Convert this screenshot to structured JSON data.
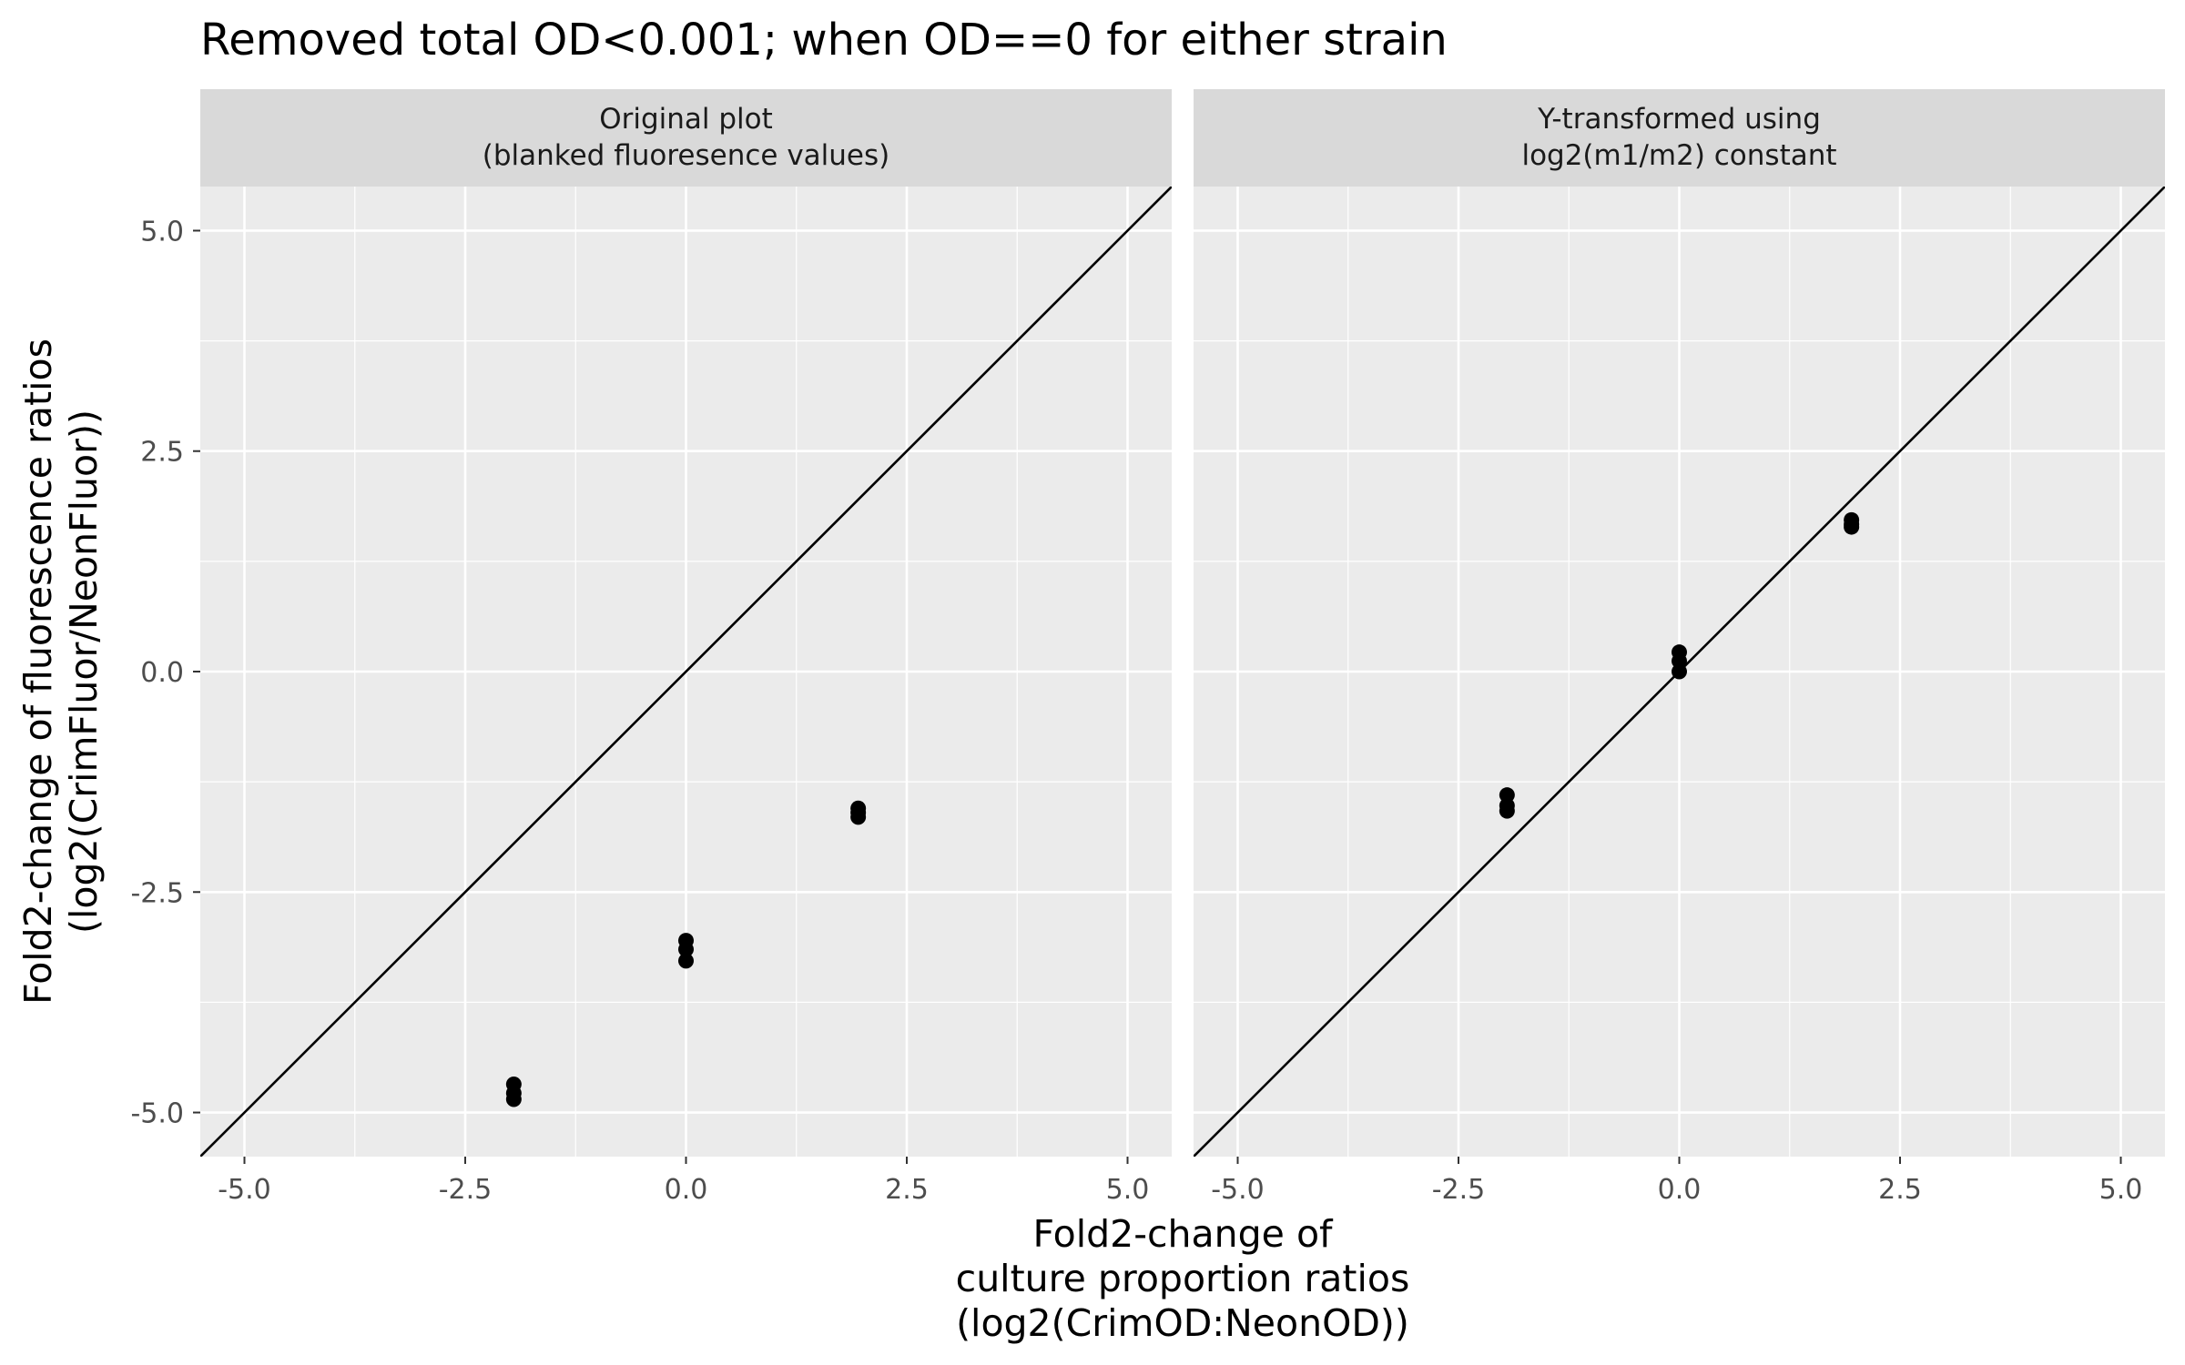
{
  "chart_data": {
    "type": "scatter",
    "title": "Removed total OD<0.001; when OD==0 for either strain",
    "xlabel": [
      "Fold2-change of",
      "culture proportion ratios",
      "(log2(CrimOD:NeonOD))"
    ],
    "ylabel": [
      "Fold2-change of fluorescence ratios",
      "(log2(CrimFluor/NeonFluor))"
    ],
    "xlim": [
      -5.5,
      5.5
    ],
    "ylim": [
      -5.5,
      5.5
    ],
    "x_ticks": [
      -5.0,
      -2.5,
      0.0,
      2.5,
      5.0
    ],
    "x_tick_labels": [
      "-5.0",
      "-2.5",
      "0.0",
      "2.5",
      "5.0"
    ],
    "y_ticks": [
      -5.0,
      -2.5,
      0.0,
      2.5,
      5.0
    ],
    "y_tick_labels": [
      "-5.0",
      "-2.5",
      "0.0",
      "2.5",
      "5.0"
    ],
    "grid": true,
    "reference_line": {
      "slope": 1,
      "intercept": 0
    },
    "facets": [
      {
        "strip": [
          "Original plot",
          "(blanked fluoresence values)"
        ],
        "points": [
          {
            "x": -1.95,
            "y": -4.68
          },
          {
            "x": -1.95,
            "y": -4.78
          },
          {
            "x": -1.95,
            "y": -4.85
          },
          {
            "x": 0.0,
            "y": -3.05
          },
          {
            "x": 0.0,
            "y": -3.15
          },
          {
            "x": 0.0,
            "y": -3.28
          },
          {
            "x": 1.95,
            "y": -1.55
          },
          {
            "x": 1.95,
            "y": -1.6
          },
          {
            "x": 1.95,
            "y": -1.65
          }
        ]
      },
      {
        "strip": [
          "Y-transformed using",
          "log2(m1/m2) constant"
        ],
        "points": [
          {
            "x": -1.95,
            "y": -1.4
          },
          {
            "x": -1.95,
            "y": -1.52
          },
          {
            "x": -1.95,
            "y": -1.58
          },
          {
            "x": 0.0,
            "y": 0.22
          },
          {
            "x": 0.0,
            "y": 0.12
          },
          {
            "x": 0.0,
            "y": 0.0
          },
          {
            "x": 1.95,
            "y": 1.72
          },
          {
            "x": 1.95,
            "y": 1.67
          },
          {
            "x": 1.95,
            "y": 1.64
          }
        ]
      }
    ]
  }
}
